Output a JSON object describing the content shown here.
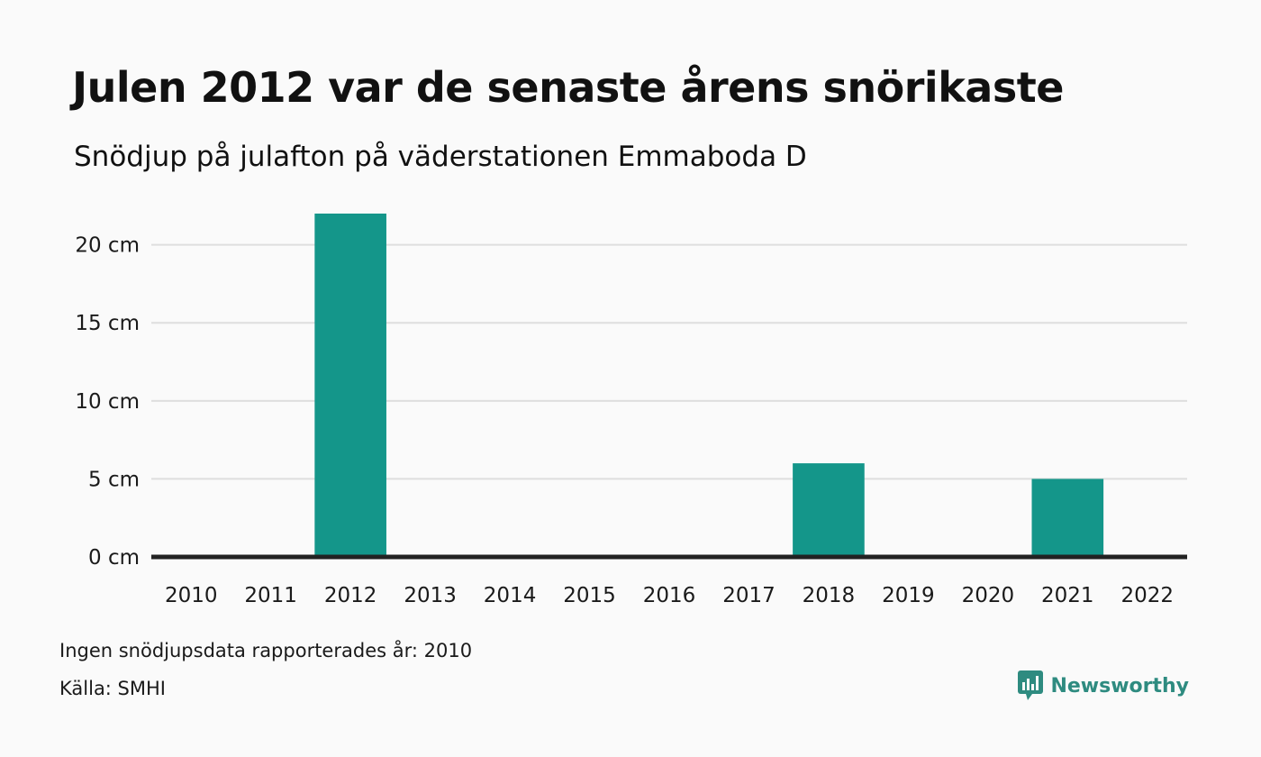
{
  "header": {
    "title": "Julen 2012 var de senaste årens snörikaste",
    "subtitle": "Snödjup på julafton på väderstationen Emmaboda D"
  },
  "footer": {
    "note": "Ingen snödjupsdata rapporterades år: 2010",
    "source": "Källa: SMHI",
    "brand_name": "Newsworthy",
    "brand_icon": "newsworthy-logo-icon",
    "brand_color": "#2e8b80"
  },
  "chart_data": {
    "type": "bar",
    "title": "Julen 2012 var de senaste årens snörikaste",
    "subtitle": "Snödjup på julafton på väderstationen Emmaboda D",
    "xlabel": "",
    "ylabel": "",
    "categories": [
      "2010",
      "2011",
      "2012",
      "2013",
      "2014",
      "2015",
      "2016",
      "2017",
      "2018",
      "2019",
      "2020",
      "2021",
      "2022"
    ],
    "values": [
      null,
      0,
      22,
      0,
      0,
      0,
      0,
      0,
      6,
      0,
      0,
      5,
      0
    ],
    "ylim": [
      0,
      22
    ],
    "yticks": [
      0,
      5,
      10,
      15,
      20
    ],
    "ytick_labels": [
      "0 cm",
      "5 cm",
      "10 cm",
      "15 cm",
      "20 cm"
    ],
    "bar_color": "#14968a",
    "grid": true,
    "legend": "none"
  }
}
